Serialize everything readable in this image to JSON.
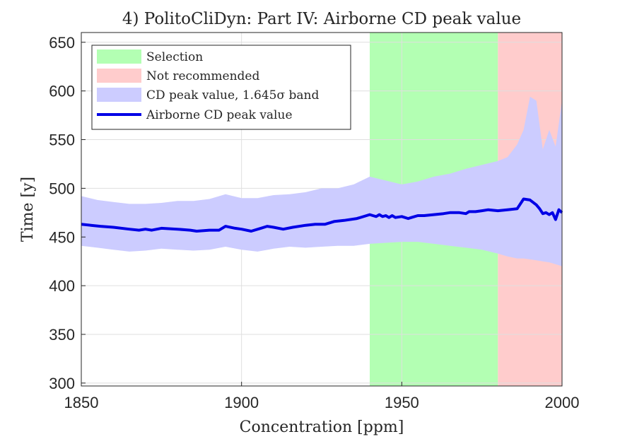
{
  "chart_data": {
    "type": "line",
    "title": "4) PolitoCliDyn: Part IV: Airborne CD peak value",
    "xlabel": "Concentration [ppm]",
    "ylabel": "Time [y]",
    "xlim": [
      1850,
      2000
    ],
    "ylim": [
      297,
      660
    ],
    "xticks": [
      1850,
      1900,
      1950,
      2000
    ],
    "yticks": [
      300,
      350,
      400,
      450,
      500,
      550,
      600,
      650
    ],
    "grid": true,
    "legend_position": "top-left",
    "shaded_regions": [
      {
        "name": "Selection",
        "x_start": 1940,
        "x_end": 1980,
        "color": "#b3ffb3"
      },
      {
        "name": "Not recommended",
        "x_start": 1980,
        "x_end": 2000,
        "color": "#ffcccc"
      }
    ],
    "band": {
      "name": "CD peak value, 1.645σ band",
      "color": "#ccccff",
      "x": [
        1850,
        1855,
        1860,
        1865,
        1870,
        1875,
        1880,
        1885,
        1890,
        1895,
        1900,
        1905,
        1910,
        1915,
        1920,
        1925,
        1930,
        1935,
        1940,
        1945,
        1950,
        1955,
        1960,
        1965,
        1970,
        1975,
        1980,
        1983,
        1986,
        1988,
        1990,
        1992,
        1994,
        1996,
        1998,
        2000
      ],
      "upper": [
        492,
        488,
        486,
        484,
        484,
        485,
        487,
        487,
        489,
        494,
        490,
        490,
        493,
        494,
        496,
        500,
        500,
        504,
        512,
        508,
        504,
        507,
        512,
        515,
        520,
        524,
        528,
        532,
        545,
        560,
        594,
        590,
        540,
        560,
        543,
        590
      ],
      "lower": [
        441,
        439,
        437,
        435,
        436,
        438,
        437,
        436,
        437,
        440,
        437,
        435,
        438,
        440,
        439,
        440,
        441,
        441,
        443,
        444,
        445,
        445,
        443,
        441,
        439,
        437,
        433,
        430,
        428,
        428,
        427,
        426,
        425,
        424,
        422,
        420
      ]
    },
    "series": [
      {
        "name": "Airborne CD peak value",
        "color": "#0000e6",
        "x": [
          1850,
          1853,
          1856,
          1860,
          1865,
          1868,
          1870,
          1872,
          1875,
          1880,
          1884,
          1886,
          1890,
          1893,
          1895,
          1898,
          1900,
          1903,
          1906,
          1908,
          1910,
          1913,
          1916,
          1920,
          1923,
          1926,
          1928,
          1929,
          1932,
          1936,
          1939,
          1940,
          1941,
          1942,
          1943,
          1944,
          1945,
          1946,
          1947,
          1948,
          1950,
          1952,
          1953,
          1955,
          1957,
          1960,
          1963,
          1965,
          1968,
          1970,
          1971,
          1973,
          1975,
          1977,
          1980,
          1983,
          1986,
          1988,
          1990,
          1992,
          1993,
          1994,
          1995,
          1996,
          1997,
          1998,
          1999,
          2000
        ],
        "values": [
          463,
          462,
          461,
          460,
          458,
          457,
          458,
          457,
          459,
          458,
          457,
          456,
          457,
          457,
          461,
          459,
          458,
          456,
          459,
          461,
          460,
          458,
          460,
          462,
          463,
          463,
          465,
          466,
          467,
          469,
          472,
          473,
          472,
          471,
          473,
          471,
          472,
          470,
          472,
          470,
          471,
          469,
          470,
          472,
          472,
          473,
          474,
          475,
          475,
          474,
          476,
          476,
          477,
          478,
          477,
          478,
          479,
          489,
          488,
          483,
          479,
          474,
          475,
          473,
          475,
          468,
          478,
          475
        ]
      }
    ]
  }
}
